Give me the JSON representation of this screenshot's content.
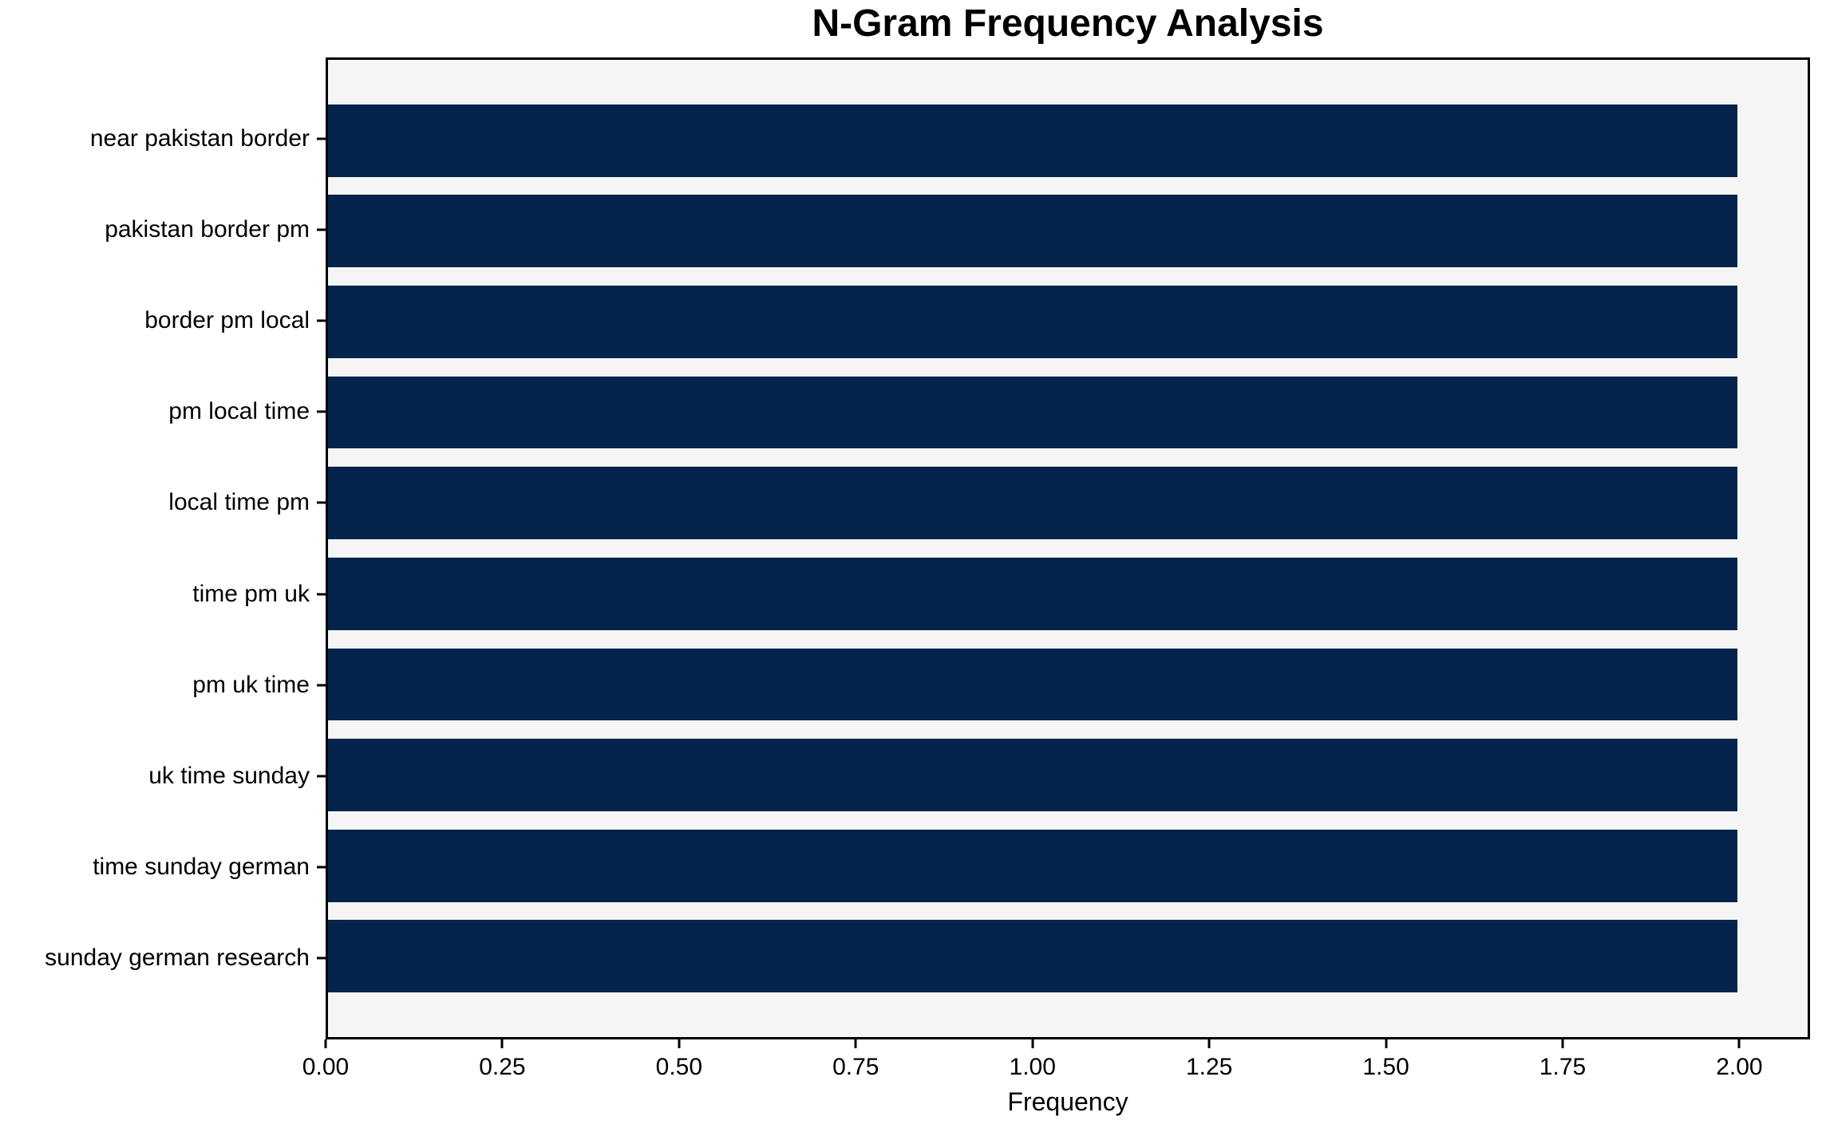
{
  "chart_data": {
    "type": "bar",
    "orientation": "horizontal",
    "title": "N-Gram Frequency Analysis",
    "xlabel": "Frequency",
    "ylabel": "",
    "categories": [
      "near pakistan border",
      "pakistan border pm",
      "border pm local",
      "pm local time",
      "local time pm",
      "time pm uk",
      "pm uk time",
      "uk time sunday",
      "time sunday german",
      "sunday german research"
    ],
    "values": [
      2.0,
      2.0,
      2.0,
      2.0,
      2.0,
      2.0,
      2.0,
      2.0,
      2.0,
      2.0
    ],
    "xlim": [
      0,
      2.1
    ],
    "x_ticks": [
      0.0,
      0.25,
      0.5,
      0.75,
      1.0,
      1.25,
      1.5,
      1.75,
      2.0
    ],
    "x_tick_labels": [
      "0.00",
      "0.25",
      "0.50",
      "0.75",
      "1.00",
      "1.25",
      "1.50",
      "1.75",
      "2.00"
    ],
    "grid": false,
    "legend": null,
    "bar_height_fraction": 0.8,
    "axis_margin_fraction": 0.05,
    "bar_color": "#04234a",
    "plot_bg_color": "#f5f5f5",
    "figure_bg_color": "#ffffff",
    "spine_color": "#000000",
    "text_color": "#000000"
  }
}
